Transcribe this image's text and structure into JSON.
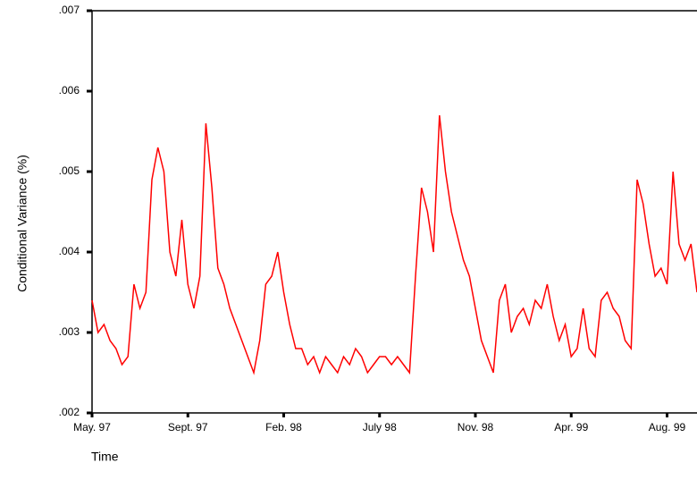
{
  "chart_data": {
    "type": "line",
    "x_label": "Time",
    "y_label": "Conditional Variance (%)",
    "categories": [
      "May. 97",
      null,
      null,
      null,
      null,
      null,
      null,
      null,
      null,
      null,
      null,
      null,
      null,
      null,
      null,
      null,
      "Sept. 97",
      null,
      null,
      null,
      null,
      null,
      null,
      null,
      null,
      null,
      null,
      null,
      null,
      null,
      null,
      null,
      "Feb. 98",
      null,
      null,
      null,
      null,
      null,
      null,
      null,
      null,
      null,
      null,
      null,
      null,
      null,
      null,
      null,
      "July 98",
      null,
      null,
      null,
      null,
      null,
      null,
      null,
      null,
      null,
      null,
      null,
      null,
      null,
      null,
      null,
      "Nov. 98",
      null,
      null,
      null,
      null,
      null,
      null,
      null,
      null,
      null,
      null,
      null,
      null,
      null,
      null,
      null,
      "Apr. 99",
      null,
      null,
      null,
      null,
      null,
      null,
      null,
      null,
      null,
      null,
      null,
      null,
      null,
      null,
      null,
      "Aug. 99",
      null,
      null,
      null,
      null,
      null
    ],
    "series": [
      {
        "color": "#ff0000",
        "values": [
          0.0034,
          0.003,
          0.0031,
          0.0029,
          0.0028,
          0.0026,
          0.0027,
          0.0036,
          0.0033,
          0.0035,
          0.0049,
          0.0053,
          0.005,
          0.004,
          0.0037,
          0.0044,
          0.0036,
          0.0033,
          0.0037,
          0.0056,
          0.0048,
          0.0038,
          0.0036,
          0.0033,
          0.0031,
          0.0029,
          0.0027,
          0.0025,
          0.0029,
          0.0036,
          0.0037,
          0.004,
          0.0035,
          0.0031,
          0.0028,
          0.0028,
          0.0026,
          0.0027,
          0.0025,
          0.0027,
          0.0026,
          0.0025,
          0.0027,
          0.0026,
          0.0028,
          0.0027,
          0.0025,
          0.0026,
          0.0027,
          0.0027,
          0.0026,
          0.0027,
          0.0026,
          0.0025,
          0.0037,
          0.0048,
          0.0045,
          0.004,
          0.0057,
          0.005,
          0.0045,
          0.0042,
          0.0039,
          0.0037,
          0.0033,
          0.0029,
          0.0027,
          0.0025,
          0.0034,
          0.0036,
          0.003,
          0.0032,
          0.0033,
          0.0031,
          0.0034,
          0.0033,
          0.0036,
          0.0032,
          0.0029,
          0.0031,
          0.0027,
          0.0028,
          0.0033,
          0.0028,
          0.0027,
          0.0034,
          0.0035,
          0.0033,
          0.0032,
          0.0029,
          0.0028,
          0.0049,
          0.0046,
          0.0041,
          0.0037,
          0.0038,
          0.0036,
          0.005,
          0.0041,
          0.0039,
          0.0041,
          0.0035
        ]
      }
    ],
    "ylim": [
      0.002,
      0.007
    ],
    "yticks": [
      {
        "value": 0.002,
        "label": ".002"
      },
      {
        "value": 0.003,
        "label": ".003"
      },
      {
        "value": 0.004,
        "label": ".004"
      },
      {
        "value": 0.005,
        "label": ".005"
      },
      {
        "value": 0.006,
        "label": ".006"
      },
      {
        "value": 0.007,
        "label": ".007"
      }
    ]
  }
}
